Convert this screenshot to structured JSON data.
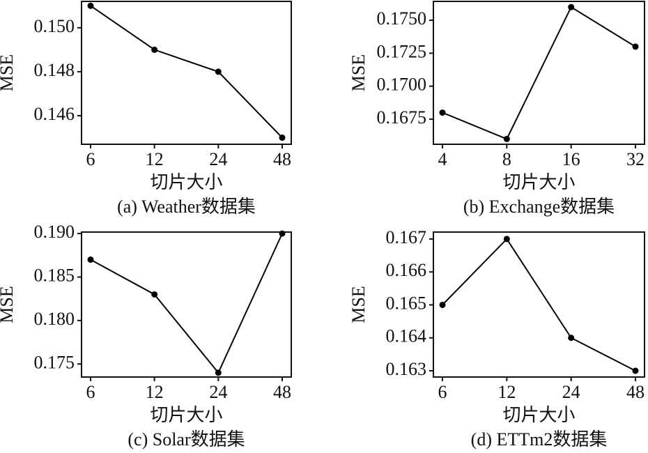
{
  "chart_data": [
    {
      "type": "line",
      "title": "(a) Weather数据集",
      "x_label": "切片大小",
      "y_label": "MSE",
      "categories": [
        "6",
        "12",
        "24",
        "48"
      ],
      "values": [
        0.151,
        0.149,
        0.148,
        0.145
      ],
      "color": "#000000",
      "ylim": [
        0.1447,
        0.1512
      ],
      "yticks": [
        0.146,
        0.148,
        {
          "value": 0.15,
          "label": "0.150"
        }
      ]
    },
    {
      "type": "line",
      "title": "(b) Exchange数据集",
      "x_label": "切片大小",
      "y_label": "MSE",
      "categories": [
        "4",
        "8",
        "16",
        "32"
      ],
      "values": [
        0.168,
        0.166,
        0.176,
        0.173
      ],
      "color": "#000000",
      "ylim": [
        0.1656,
        0.17643
      ],
      "yticks": [
        0.1675,
        {
          "value": 0.17,
          "label": "0.1700"
        },
        0.1725,
        {
          "value": 0.175,
          "label": "0.1750"
        }
      ]
    },
    {
      "type": "line",
      "title": "(c) Solar数据集",
      "x_label": "切片大小",
      "y_label": "MSE",
      "categories": [
        "6",
        "12",
        "24",
        "48"
      ],
      "values": [
        0.187,
        0.183,
        0.174,
        0.19
      ],
      "color": "#000000",
      "ylim": [
        0.1735,
        0.19017
      ],
      "yticks": [
        0.175,
        {
          "value": 0.18,
          "label": "0.180"
        },
        0.185,
        {
          "value": 0.19,
          "label": "0.190"
        }
      ]
    },
    {
      "type": "line",
      "title": "(d) ETTm2数据集",
      "x_label": "切片大小",
      "y_label": "MSE",
      "categories": [
        "6",
        "12",
        "24",
        "48"
      ],
      "values": [
        0.165,
        0.167,
        0.164,
        0.163
      ],
      "color": "#000000",
      "ylim": [
        0.16281,
        0.16721
      ],
      "yticks": [
        0.163,
        0.164,
        0.165,
        0.166,
        0.167
      ]
    }
  ]
}
